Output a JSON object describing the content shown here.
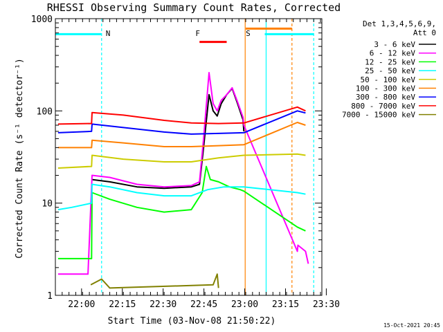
{
  "chart_data": {
    "type": "line",
    "title": "RHESSI Observing Summary Count Rates, Corrected",
    "xlabel": "Start Time (03-Nov-08 21:50:22)",
    "ylabel": "Corrected Count Rate (s⁻¹ detector⁻¹)",
    "x_unit": "minutes after 21:50:22",
    "xlim": [
      0,
      98
    ],
    "ylim": [
      1,
      1000
    ],
    "yscale": "log",
    "x_ticks": [
      {
        "label": "22:00",
        "t": 9.63
      },
      {
        "label": "22:15",
        "t": 24.63
      },
      {
        "label": "22:30",
        "t": 39.63
      },
      {
        "label": "22:45",
        "t": 54.63
      },
      {
        "label": "23:00",
        "t": 69.63
      },
      {
        "label": "23:15",
        "t": 84.63
      },
      {
        "label": "23:30",
        "t": 99.63
      }
    ],
    "y_ticks": [
      1,
      10,
      100,
      1000
    ],
    "legend_header": [
      "Det 1,3,4,5,6,9,",
      "Att 0"
    ],
    "legend_position": "right",
    "series": [
      {
        "name": "3 - 6 keV",
        "color": "#000000",
        "points": [
          [
            13.5,
            18
          ],
          [
            20,
            17
          ],
          [
            30,
            15
          ],
          [
            40,
            14.5
          ],
          [
            50,
            15
          ],
          [
            53,
            16
          ],
          [
            54.5,
            40
          ],
          [
            56.5,
            150
          ],
          [
            58,
            100
          ],
          [
            59.5,
            88
          ],
          [
            61,
            120
          ],
          [
            63,
            150
          ],
          [
            65,
            175
          ],
          [
            67,
            120
          ],
          [
            69,
            80
          ],
          [
            69.3,
            60
          ]
        ]
      },
      {
        "name": "6 - 12 keV",
        "color": "#ff00ff",
        "points": [
          [
            1,
            1.7
          ],
          [
            12,
            1.7
          ],
          [
            13.5,
            20
          ],
          [
            20,
            19
          ],
          [
            30,
            16
          ],
          [
            40,
            15
          ],
          [
            50,
            15.5
          ],
          [
            53,
            17
          ],
          [
            54.5,
            50
          ],
          [
            56.5,
            260
          ],
          [
            58,
            120
          ],
          [
            59.5,
            100
          ],
          [
            61,
            130
          ],
          [
            63,
            150
          ],
          [
            65,
            178
          ],
          [
            67,
            125
          ],
          [
            69,
            85
          ],
          [
            69.3,
            70
          ],
          [
            89,
            3
          ],
          [
            89.2,
            3.5
          ],
          [
            92,
            3
          ],
          [
            93,
            2.2
          ]
        ]
      },
      {
        "name": "12 - 25 keV",
        "color": "#00ff00",
        "points": [
          [
            1,
            2.5
          ],
          [
            13.3,
            2.5
          ],
          [
            13.5,
            13
          ],
          [
            20,
            11
          ],
          [
            30,
            9
          ],
          [
            40,
            8
          ],
          [
            50,
            8.5
          ],
          [
            54,
            13
          ],
          [
            55.5,
            25
          ],
          [
            57,
            18
          ],
          [
            60,
            17
          ],
          [
            64,
            15
          ],
          [
            68,
            14
          ],
          [
            69.3,
            13.5
          ],
          [
            89,
            5.5
          ],
          [
            92,
            5
          ]
        ]
      },
      {
        "name": "25 - 50 keV",
        "color": "#00ffff",
        "points": [
          [
            1,
            8.5
          ],
          [
            6,
            9
          ],
          [
            13.3,
            10
          ],
          [
            13.5,
            16
          ],
          [
            20,
            15
          ],
          [
            30,
            13
          ],
          [
            40,
            12
          ],
          [
            50,
            12
          ],
          [
            56,
            14
          ],
          [
            62,
            15
          ],
          [
            69.3,
            15
          ],
          [
            89,
            13
          ],
          [
            92,
            12.5
          ]
        ]
      },
      {
        "name": "50 - 100 keV",
        "color": "#cccc00",
        "points": [
          [
            1,
            24
          ],
          [
            13.3,
            25
          ],
          [
            13.5,
            33
          ],
          [
            25,
            30
          ],
          [
            40,
            28
          ],
          [
            50,
            28
          ],
          [
            60,
            31
          ],
          [
            69.3,
            33
          ],
          [
            89,
            34
          ],
          [
            92,
            33
          ]
        ]
      },
      {
        "name": "100 - 300 keV",
        "color": "#ff8000",
        "points": [
          [
            1,
            40
          ],
          [
            13.3,
            40
          ],
          [
            13.5,
            48
          ],
          [
            25,
            45
          ],
          [
            40,
            41
          ],
          [
            50,
            41
          ],
          [
            60,
            42
          ],
          [
            69.3,
            43
          ],
          [
            89,
            75
          ],
          [
            92,
            70
          ]
        ]
      },
      {
        "name": "300 - 800 keV",
        "color": "#0000ff",
        "points": [
          [
            1,
            58
          ],
          [
            13.3,
            60
          ],
          [
            13.5,
            72
          ],
          [
            25,
            66
          ],
          [
            40,
            59
          ],
          [
            50,
            56
          ],
          [
            60,
            57
          ],
          [
            69.3,
            58
          ],
          [
            89,
            100
          ],
          [
            92,
            95
          ]
        ]
      },
      {
        "name": "800 - 7000 keV",
        "color": "#ff0000",
        "points": [
          [
            1,
            72
          ],
          [
            13.3,
            73
          ],
          [
            13.5,
            96
          ],
          [
            25,
            90
          ],
          [
            40,
            79
          ],
          [
            50,
            74
          ],
          [
            60,
            73
          ],
          [
            69.3,
            74
          ],
          [
            89,
            110
          ],
          [
            92,
            100
          ]
        ]
      },
      {
        "name": "7000 - 15000 keV",
        "color": "#808000",
        "points": [
          [
            13,
            1.3
          ],
          [
            17,
            1.5
          ],
          [
            20,
            1.2
          ],
          [
            58,
            1.3
          ],
          [
            59.5,
            1.7
          ],
          [
            60,
            1.2
          ]
        ]
      }
    ],
    "annotations": [
      {
        "label": "N",
        "color": "#00ffff",
        "t": 17
      },
      {
        "label": "F",
        "color": "#ff0000",
        "t": 50
      },
      {
        "label": "S",
        "color": "#ff8000",
        "t": 68.5
      }
    ],
    "flag_bars": [
      {
        "label": "N",
        "color": "#00ffff",
        "t0": 0,
        "t1": 17,
        "level": 680
      },
      {
        "label": "F",
        "color": "#ff0000",
        "t0": 53,
        "t1": 63,
        "level": 560
      },
      {
        "label": "S",
        "color": "#ff8000",
        "t0": 70,
        "t1": 87,
        "level": 780
      },
      {
        "label": "N",
        "color": "#00ffff",
        "t0": 77,
        "t1": 95,
        "level": 680
      }
    ],
    "event_lines": [
      {
        "color": "#00ffff",
        "t": 17,
        "style": "dashed"
      },
      {
        "color": "#ff8000",
        "t": 69.8,
        "style": "solid"
      },
      {
        "color": "#00ffff",
        "t": 77.5,
        "style": "solid"
      },
      {
        "color": "#ff8000",
        "t": 87,
        "style": "dashed"
      },
      {
        "color": "#00ffff",
        "t": 95,
        "style": "dashed"
      }
    ]
  },
  "footer": {
    "timestamp": "15-Oct-2021 20:45"
  }
}
